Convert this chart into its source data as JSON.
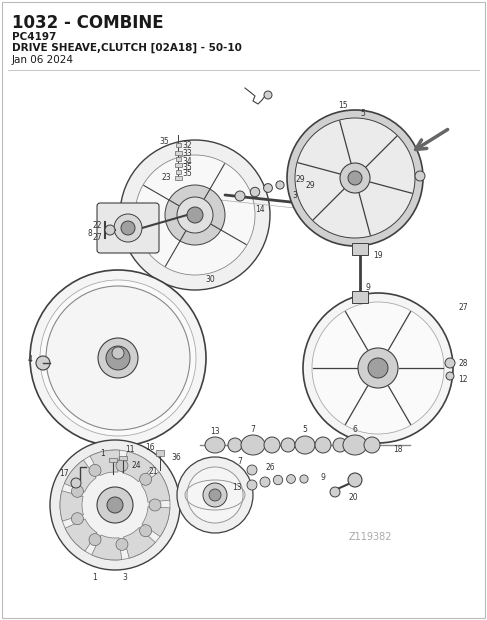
{
  "title": "1032 - COMBINE",
  "subtitle1": "PC4197",
  "subtitle2": "DRIVE SHEAVE,CLUTCH [02A18] - 50-10",
  "date": "Jan 06 2024",
  "diagram_code": "Z119382",
  "bg_color": "#ffffff",
  "border_color": "#bbbbbb",
  "text_color": "#1a1a1a",
  "title_fontsize": 12,
  "subtitle_fontsize": 7.5,
  "date_fontsize": 7.5,
  "diagram_code_fontsize": 7,
  "fig_width": 4.87,
  "fig_height": 6.2,
  "dpi": 100,
  "line_color": "#404040",
  "light_gray": "#d0d0d0",
  "mid_gray": "#a0a0a0",
  "label_fontsize": 5.5
}
